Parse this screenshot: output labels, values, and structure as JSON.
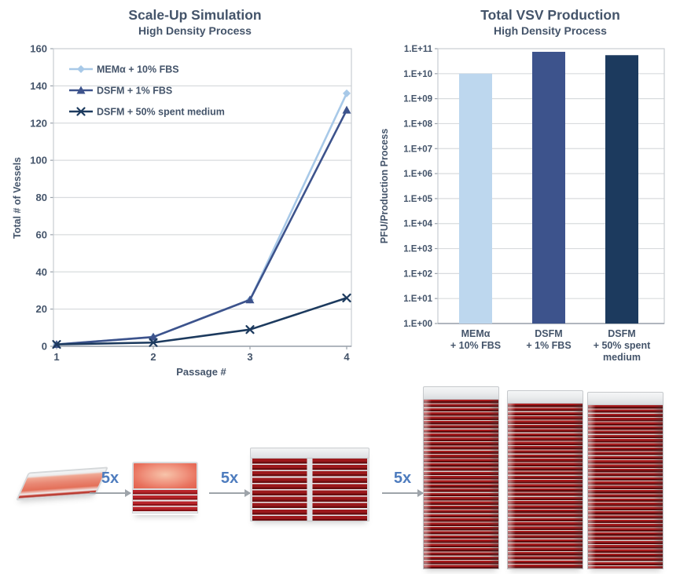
{
  "palette": {
    "text_blue_gray": "#44546A",
    "grid_gray": "#D8DBDE",
    "axis_gray": "#9AA2AB",
    "arrow_gray": "#9EA4AA",
    "multiplier_blue": "#4E7CBE"
  },
  "chart_data": [
    {
      "type": "line",
      "title": "Scale-Up Simulation",
      "subtitle": "High Density Process",
      "xlabel": "Passage #",
      "ylabel": "Total # of Vessels",
      "x": [
        1,
        2,
        3,
        4
      ],
      "xtick_labels": [
        "1",
        "2",
        "3",
        "4"
      ],
      "ylim": [
        0,
        160
      ],
      "ytick_step": 20,
      "grid": true,
      "legend_position": "top-left-inside",
      "series": [
        {
          "name": "MEMα + 10% FBS",
          "values": [
            1,
            5,
            25,
            136
          ],
          "color": "#A8C9E8",
          "marker": "diamond"
        },
        {
          "name": "DSFM + 1% FBS",
          "values": [
            1,
            5,
            25,
            127
          ],
          "color": "#3D538C",
          "marker": "triangle"
        },
        {
          "name": "DSFM + 50% spent medium",
          "values": [
            1,
            2,
            9,
            26
          ],
          "color": "#1C3A5E",
          "marker": "x"
        }
      ]
    },
    {
      "type": "bar",
      "title": "Total VSV Production",
      "subtitle": "High Density Process",
      "xlabel": "",
      "ylabel": "PFU/Production Process",
      "yscale": "log",
      "ylim": [
        1,
        100000000000
      ],
      "grid": true,
      "ytick_labels": [
        "1.E+00",
        "1.E+01",
        "1.E+02",
        "1.E+03",
        "1.E+04",
        "1.E+05",
        "1.E+06",
        "1.E+07",
        "1.E+08",
        "1.E+09",
        "1.E+10",
        "1.E+11"
      ],
      "categories": [
        [
          "MEMα",
          "+ 10% FBS"
        ],
        [
          "DSFM",
          "+ 1% FBS"
        ],
        [
          "DSFM",
          "+ 50% spent",
          "medium"
        ]
      ],
      "values": [
        10000000000,
        75000000000,
        55000000000
      ],
      "colors": [
        "#BDD7EE",
        "#3D538C",
        "#1C3A5E"
      ]
    }
  ],
  "process_flow": {
    "multipliers": [
      "5x",
      "5x",
      "5x"
    ]
  }
}
